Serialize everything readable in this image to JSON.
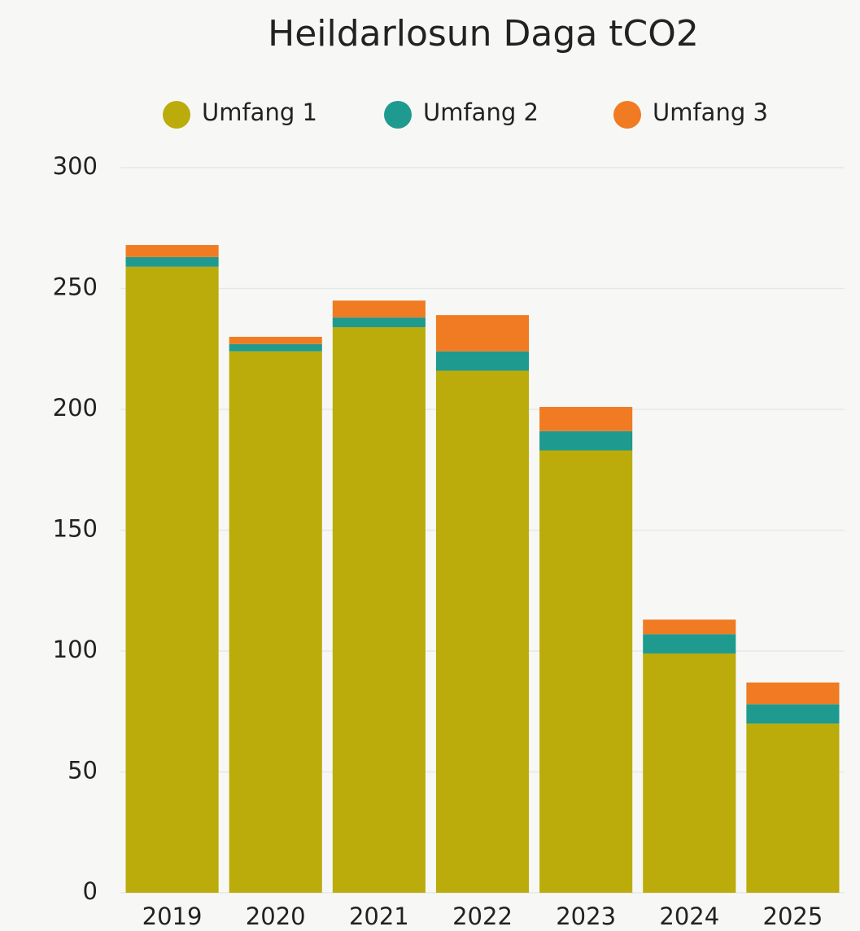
{
  "chart_data": {
    "type": "stacked_bar",
    "title": "Heildarlosun Daga tCO2",
    "categories": [
      "2019",
      "2020",
      "2021",
      "2022",
      "2023",
      "2024",
      "2025"
    ],
    "series": [
      {
        "name": "Umfang 1",
        "color": "#bbac0c",
        "values": [
          259,
          224,
          234,
          216,
          183,
          99,
          70
        ]
      },
      {
        "name": "Umfang 2",
        "color": "#1f9a8f",
        "values": [
          4,
          3,
          4,
          8,
          8,
          8,
          8
        ]
      },
      {
        "name": "Umfang 3",
        "color": "#f07b22",
        "values": [
          5,
          3,
          7,
          15,
          10,
          6,
          9
        ]
      }
    ],
    "ylim": [
      0,
      300
    ],
    "yticks": [
      0,
      50,
      100,
      150,
      200,
      250,
      300
    ],
    "grid": true,
    "legend": "top"
  }
}
